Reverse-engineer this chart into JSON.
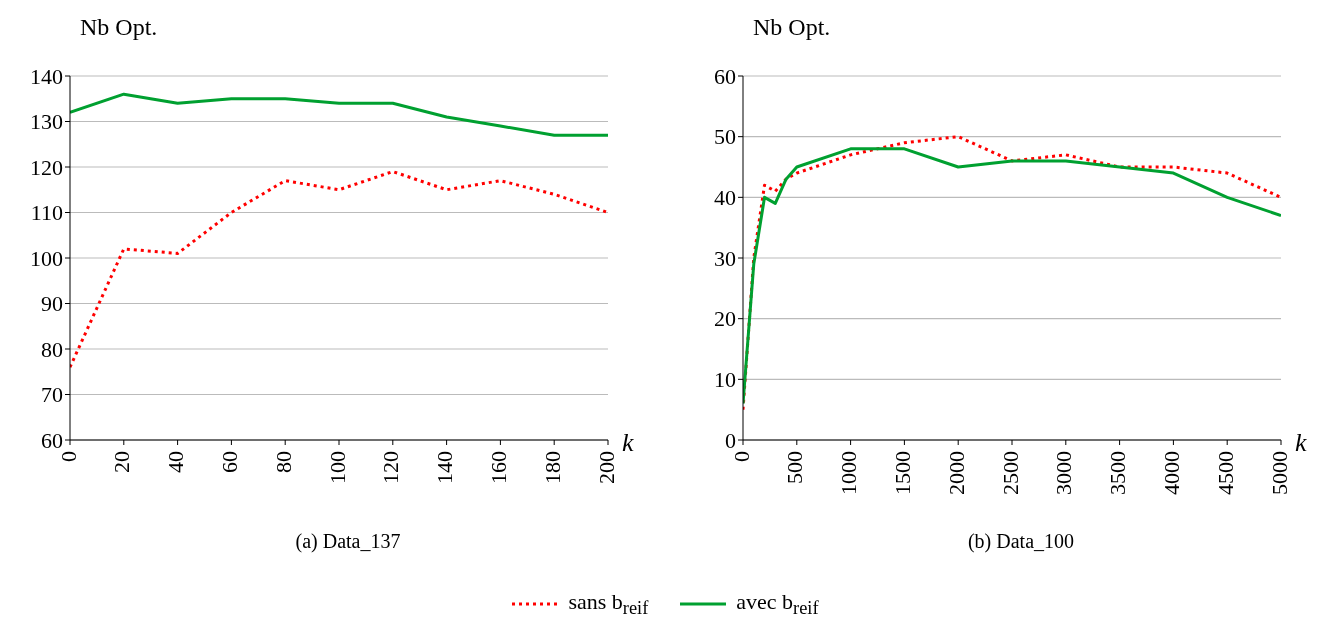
{
  "chart_data": [
    {
      "type": "line",
      "ylabel": "Nb Opt.",
      "xlabel": "k",
      "annotations": [
        "(a) Data_137"
      ],
      "x": [
        0,
        20,
        40,
        60,
        80,
        100,
        120,
        140,
        160,
        180,
        200
      ],
      "xlim": [
        0,
        200
      ],
      "xticks": [
        0,
        20,
        40,
        60,
        80,
        100,
        120,
        140,
        160,
        180,
        200
      ],
      "ylim": [
        60,
        140
      ],
      "yticks": [
        60,
        70,
        80,
        90,
        100,
        110,
        120,
        130,
        140
      ],
      "grid": "y",
      "legend": "bottom",
      "marker": "none",
      "series": [
        {
          "name": "sans b$_{reif}$",
          "color": "#ff0000",
          "line_style": "dotted",
          "values": [
            76,
            102,
            101,
            110,
            117,
            115,
            119,
            115,
            117,
            114,
            110
          ]
        },
        {
          "name": "avec b$_{reif}$",
          "color": "#00a030",
          "line_style": "solid",
          "values": [
            132,
            136,
            134,
            135,
            135,
            134,
            134,
            131,
            129,
            127,
            127
          ]
        }
      ]
    },
    {
      "type": "line",
      "ylabel": "Nb Opt.",
      "xlabel": "k",
      "annotations": [
        "(b) Data_100"
      ],
      "x": [
        0,
        100,
        200,
        300,
        400,
        500,
        1000,
        1500,
        2000,
        2500,
        3000,
        3500,
        4000,
        4500,
        5000
      ],
      "xlim": [
        0,
        5000
      ],
      "xticks": [
        0,
        500,
        1000,
        1500,
        2000,
        2500,
        3000,
        3500,
        4000,
        4500,
        5000
      ],
      "ylim": [
        0,
        60
      ],
      "yticks": [
        0,
        10,
        20,
        30,
        40,
        50,
        60
      ],
      "grid": "y",
      "marker": "none",
      "series": [
        {
          "color": "#ff0000",
          "line_style": "dotted",
          "values": [
            5,
            30,
            42,
            41,
            43,
            44,
            47,
            49,
            50,
            46,
            47,
            45,
            45,
            44,
            40
          ]
        },
        {
          "color": "#00a030",
          "line_style": "solid",
          "values": [
            6,
            29,
            40,
            39,
            43,
            45,
            48,
            48,
            45,
            46,
            46,
            45,
            44,
            40,
            37
          ]
        }
      ]
    }
  ]
}
